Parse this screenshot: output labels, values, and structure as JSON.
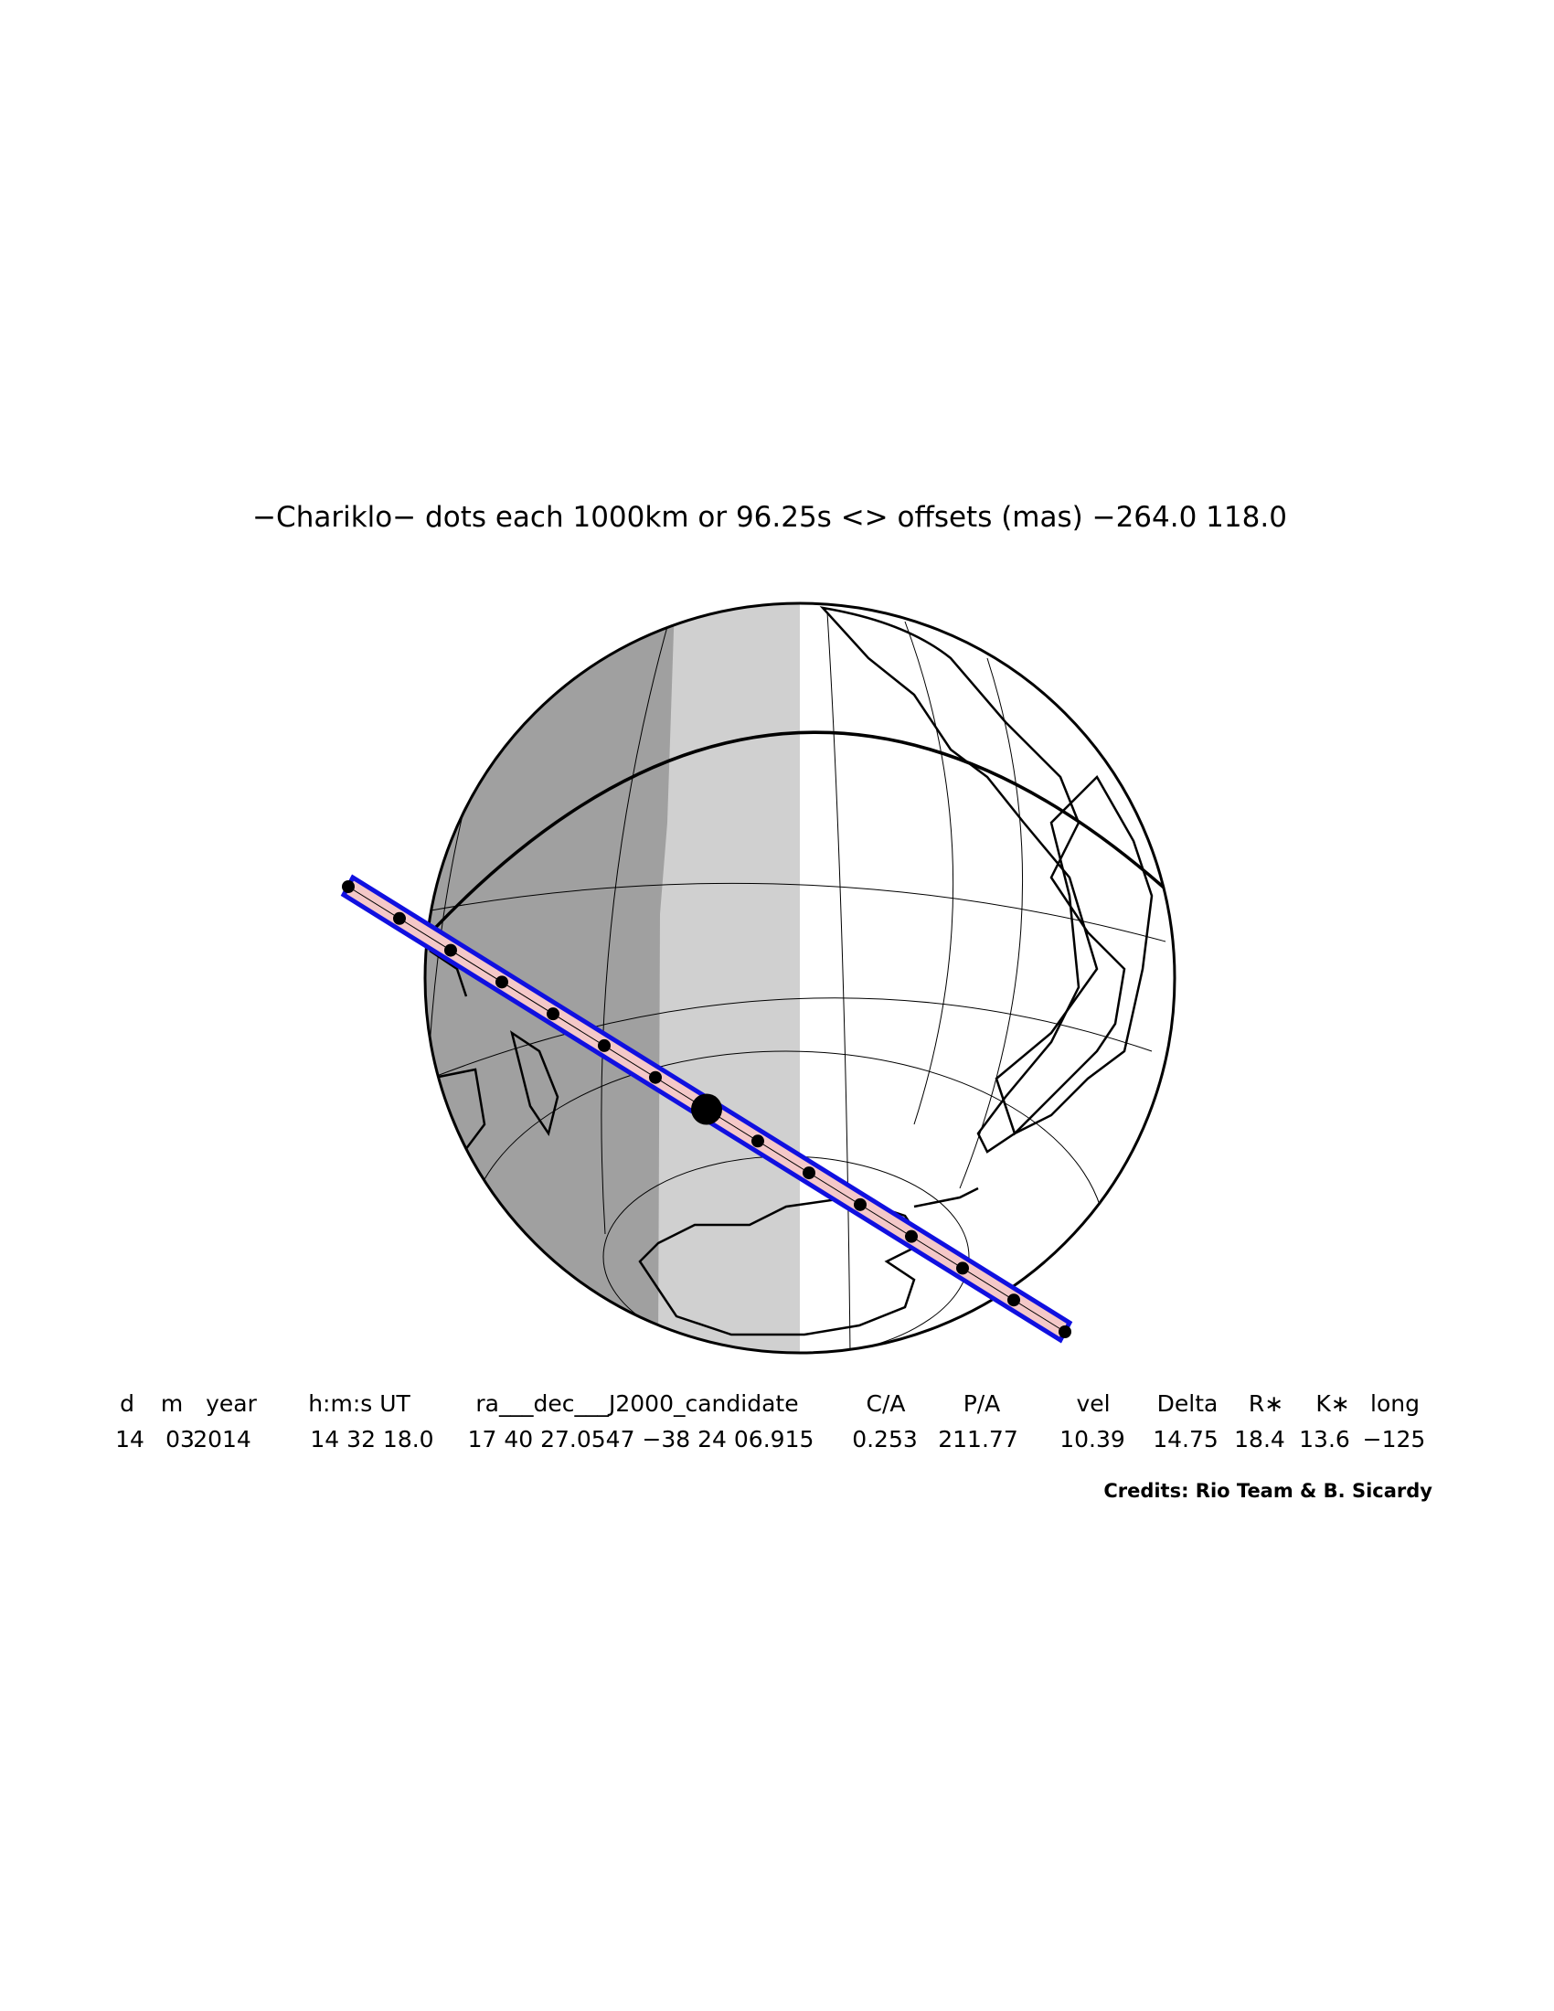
{
  "title": "−Chariklo− dots each 1000km or 96.25s <> offsets (mas) −264.0  118.0",
  "table": {
    "headers": [
      "d",
      "m",
      "year",
      "h:m:s UT",
      "ra___dec___J2000_candidate",
      "C/A",
      "P/A",
      "vel",
      "Delta",
      "R∗",
      "K∗",
      "long"
    ],
    "rows": [
      [
        "14",
        "03",
        "2014",
        "14 32 18.0",
        "17 40 27.0547 −38 24 06.915",
        "0.253",
        "211.77",
        "10.39",
        "14.75",
        "18.4",
        "13.6",
        "−125"
      ]
    ]
  },
  "credits": "Credits: Rio Team & B. Sicardy"
}
